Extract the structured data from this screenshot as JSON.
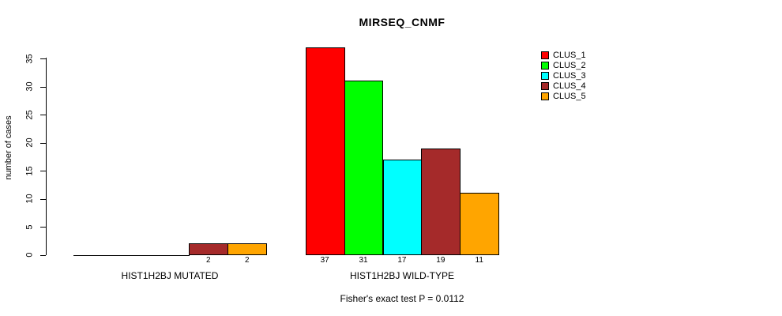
{
  "chart": {
    "title": "MIRSEQ_CNMF",
    "y_axis_label": "number of cases",
    "footnote": "Fisher's exact test P = 0.0112",
    "background_color": "#ffffff",
    "axis_color": "#000000"
  },
  "chart_data": {
    "type": "bar",
    "title": "MIRSEQ_CNMF",
    "xlabel": "",
    "ylabel": "number of cases",
    "ylim": [
      0,
      37
    ],
    "yticks": [
      0,
      5,
      10,
      15,
      20,
      25,
      30,
      35
    ],
    "grid": false,
    "legend_position": "top-right",
    "categories": [
      "HIST1H2BJ MUTATED",
      "HIST1H2BJ WILD-TYPE"
    ],
    "series": [
      {
        "name": "CLUS_1",
        "color": "#FF0000",
        "values": [
          0,
          37
        ]
      },
      {
        "name": "CLUS_2",
        "color": "#00FF00",
        "values": [
          0,
          31
        ]
      },
      {
        "name": "CLUS_3",
        "color": "#00FFFF",
        "values": [
          0,
          17
        ]
      },
      {
        "name": "CLUS_4",
        "color": "#A52A2A",
        "values": [
          2,
          19
        ]
      },
      {
        "name": "CLUS_5",
        "color": "#FFA500",
        "values": [
          2,
          11
        ]
      }
    ],
    "bar_value_labels": [
      [
        null,
        null,
        null,
        "2",
        "2"
      ],
      [
        "37",
        "31",
        "17",
        "19",
        "11"
      ]
    ],
    "annotation": "Fisher's exact test P = 0.0112"
  }
}
